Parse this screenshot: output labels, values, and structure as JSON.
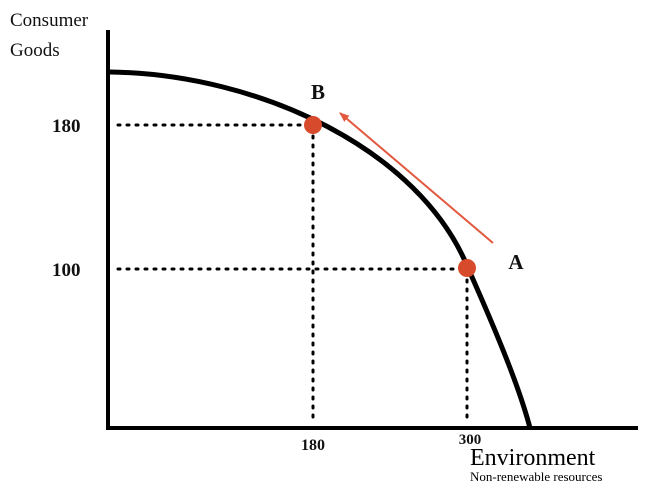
{
  "y_axis": {
    "title_lines": [
      "Consumer",
      "Goods"
    ],
    "labels": [
      "180",
      "100"
    ]
  },
  "x_axis": {
    "title": "Environment",
    "subtitle": "Non-renewable resources",
    "labels": [
      "180",
      "300"
    ]
  },
  "points": [
    {
      "label": "B"
    },
    {
      "label": "A"
    }
  ]
}
